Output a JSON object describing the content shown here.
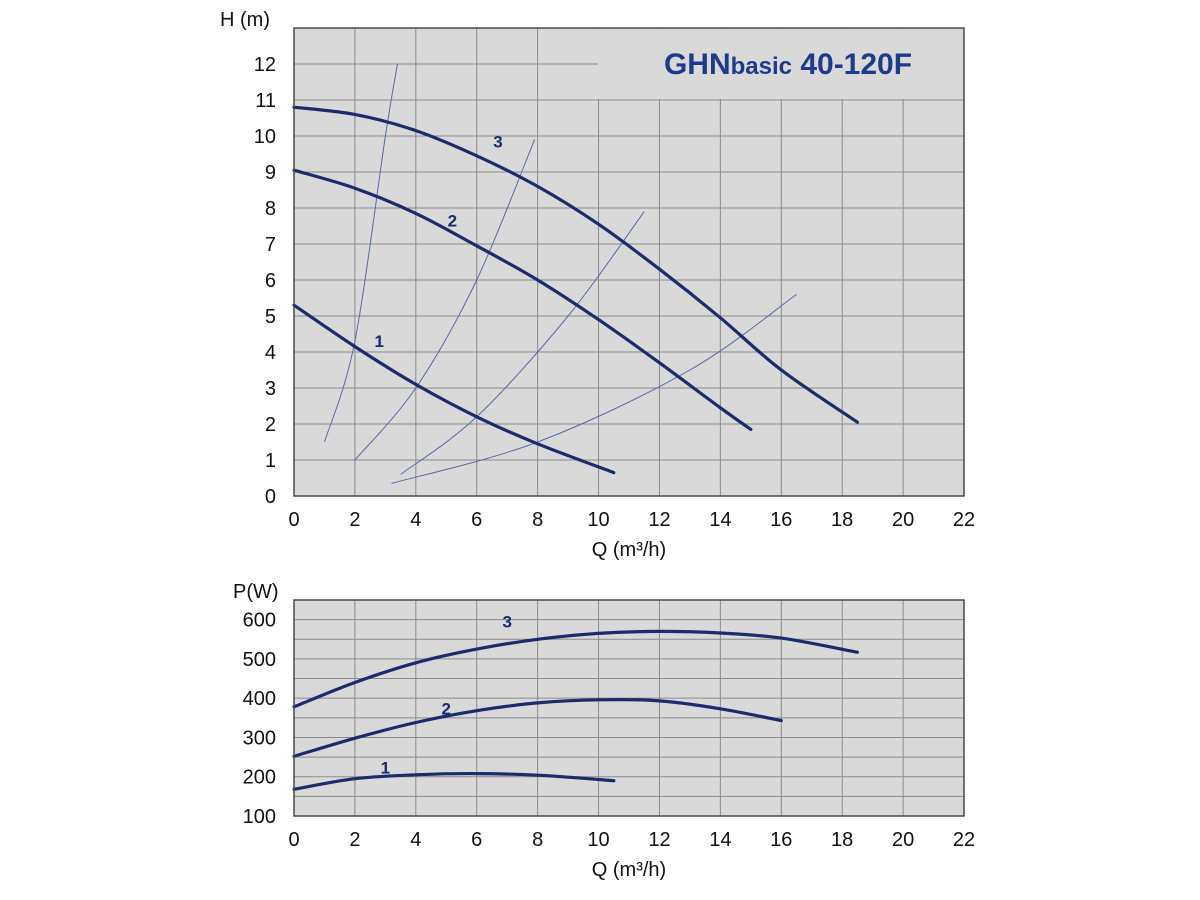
{
  "colors": {
    "plot_background": "#d9d9d9",
    "grid": "#8a8a8a",
    "frame": "#4a4a4a",
    "curve": "#1b2b6b",
    "system_curve": "#5a6aa8",
    "title": "#1e3a8c",
    "label": "#1b2b6b"
  },
  "title": {
    "prefix": "GHN",
    "sub": "basic",
    "model": "40-120F"
  },
  "chart_data": [
    {
      "id": "head",
      "type": "line",
      "ylabel": "H (m)",
      "xlabel": "Q (m³/h)",
      "xlim": [
        0,
        22
      ],
      "ylim": [
        0,
        13
      ],
      "xticks": [
        0,
        2,
        4,
        6,
        8,
        10,
        12,
        14,
        16,
        18,
        20,
        22
      ],
      "yticks": [
        0,
        1,
        2,
        3,
        4,
        5,
        6,
        7,
        8,
        9,
        10,
        11,
        12
      ],
      "grid": true,
      "series": [
        {
          "name": "1",
          "label_pos": [
            2.8,
            4.3
          ],
          "points": [
            [
              0,
              5.3
            ],
            [
              2,
              4.15
            ],
            [
              4,
              3.1
            ],
            [
              6,
              2.2
            ],
            [
              8,
              1.45
            ],
            [
              10.5,
              0.65
            ]
          ]
        },
        {
          "name": "2",
          "label_pos": [
            5.2,
            7.65
          ],
          "points": [
            [
              0,
              9.05
            ],
            [
              2,
              8.55
            ],
            [
              4,
              7.85
            ],
            [
              6,
              6.95
            ],
            [
              8,
              6.0
            ],
            [
              10,
              4.9
            ],
            [
              12,
              3.7
            ],
            [
              14,
              2.45
            ],
            [
              15,
              1.85
            ]
          ]
        },
        {
          "name": "3",
          "label_pos": [
            6.7,
            9.85
          ],
          "points": [
            [
              0,
              10.8
            ],
            [
              2,
              10.6
            ],
            [
              4,
              10.15
            ],
            [
              6,
              9.45
            ],
            [
              8,
              8.6
            ],
            [
              10,
              7.55
            ],
            [
              12,
              6.3
            ],
            [
              14,
              4.95
            ],
            [
              16,
              3.5
            ],
            [
              18.5,
              2.05
            ]
          ]
        }
      ],
      "system_curves": [
        [
          [
            1.0,
            1.5
          ],
          [
            2.0,
            4.3
          ],
          [
            3.0,
            10.0
          ],
          [
            3.4,
            12.0
          ]
        ],
        [
          [
            2.0,
            1.0
          ],
          [
            4.0,
            3.0
          ],
          [
            6.0,
            6.0
          ],
          [
            7.9,
            9.9
          ]
        ],
        [
          [
            3.5,
            0.6
          ],
          [
            6.0,
            2.2
          ],
          [
            9.0,
            5.0
          ],
          [
            11.5,
            7.9
          ]
        ],
        [
          [
            3.2,
            0.35
          ],
          [
            8.0,
            1.5
          ],
          [
            13.0,
            3.5
          ],
          [
            16.5,
            5.6
          ]
        ]
      ]
    },
    {
      "id": "power",
      "type": "line",
      "ylabel": "P(W)",
      "xlabel": "Q (m³/h)",
      "xlim": [
        0,
        22
      ],
      "ylim": [
        100,
        650
      ],
      "xticks": [
        0,
        2,
        4,
        6,
        8,
        10,
        12,
        14,
        16,
        18,
        20,
        22
      ],
      "yticks": [
        100,
        200,
        300,
        400,
        500,
        600
      ],
      "grid": true,
      "series": [
        {
          "name": "1",
          "label_pos": [
            3.0,
            223
          ],
          "points": [
            [
              0,
              168
            ],
            [
              2,
              195
            ],
            [
              4,
              205
            ],
            [
              6,
              208
            ],
            [
              8,
              204
            ],
            [
              10.5,
              190
            ]
          ]
        },
        {
          "name": "2",
          "label_pos": [
            5.0,
            374
          ],
          "points": [
            [
              0,
              252
            ],
            [
              2,
              298
            ],
            [
              4,
              338
            ],
            [
              6,
              368
            ],
            [
              8,
              388
            ],
            [
              10,
              396
            ],
            [
              12,
              393
            ],
            [
              14,
              373
            ],
            [
              16,
              343
            ]
          ]
        },
        {
          "name": "3",
          "label_pos": [
            7.0,
            595
          ],
          "points": [
            [
              0,
              378
            ],
            [
              2,
              440
            ],
            [
              4,
              490
            ],
            [
              6,
              525
            ],
            [
              8,
              550
            ],
            [
              10,
              565
            ],
            [
              12,
              570
            ],
            [
              14,
              566
            ],
            [
              16,
              553
            ],
            [
              18.5,
              517
            ]
          ]
        }
      ]
    }
  ]
}
